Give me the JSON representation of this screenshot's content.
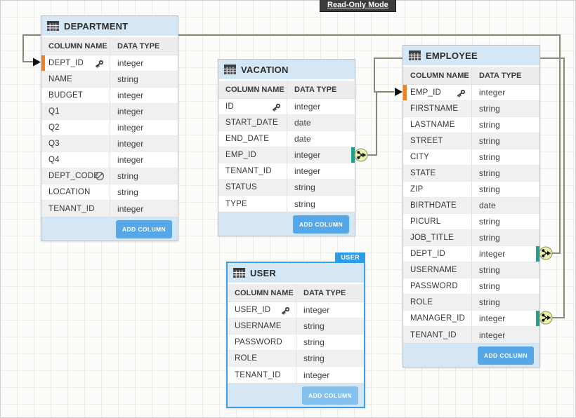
{
  "mode_badge": {
    "label": "Read-Only Mode"
  },
  "colors": {
    "accent_blue": "#55a7e8",
    "accent_blue_light": "#85c1ef",
    "header_blue": "#d5e7f4",
    "selected_border": "#3b9fe8",
    "badge_blue": "#2b9ce8",
    "line_olive": "#8b8876",
    "pk_orange": "#f08226",
    "fk_teal": "#21a18d",
    "connector_fill": "#e9efad",
    "readonly_bg": "#3c3c3c"
  },
  "tables": [
    {
      "title": "DEPARTMENT",
      "header": {
        "name": "COLUMN NAME",
        "type": "DATA TYPE"
      },
      "add_column_label": "ADD COLUMN",
      "rows": [
        {
          "name": "DEPT_ID",
          "type": "integer",
          "icon": "key",
          "marker": "left-orange"
        },
        {
          "name": "NAME",
          "type": "string"
        },
        {
          "name": "BUDGET",
          "type": "integer"
        },
        {
          "name": "Q1",
          "type": "integer"
        },
        {
          "name": "Q2",
          "type": "integer"
        },
        {
          "name": "Q3",
          "type": "integer"
        },
        {
          "name": "Q4",
          "type": "integer"
        },
        {
          "name": "DEPT_CODE",
          "type": "string",
          "icon": "slash-circle"
        },
        {
          "name": "LOCATION",
          "type": "string"
        },
        {
          "name": "TENANT_ID",
          "type": "integer"
        }
      ]
    },
    {
      "title": "VACATION",
      "header": {
        "name": "COLUMN NAME",
        "type": "DATA TYPE"
      },
      "add_column_label": "ADD COLUMN",
      "rows": [
        {
          "name": "ID",
          "type": "integer",
          "icon": "key"
        },
        {
          "name": "START_DATE",
          "type": "date"
        },
        {
          "name": "END_DATE",
          "type": "date"
        },
        {
          "name": "EMP_ID",
          "type": "integer",
          "marker": "right-teal"
        },
        {
          "name": "TENANT_ID",
          "type": "integer"
        },
        {
          "name": "STATUS",
          "type": "string"
        },
        {
          "name": "TYPE",
          "type": "string"
        }
      ]
    },
    {
      "title": "USER",
      "selected_badge": "USER",
      "header": {
        "name": "COLUMN NAME",
        "type": "DATA TYPE"
      },
      "add_column_label": "ADD COLUMN",
      "rows": [
        {
          "name": "USER_ID",
          "type": "integer",
          "icon": "key"
        },
        {
          "name": "USERNAME",
          "type": "string"
        },
        {
          "name": "PASSWORD",
          "type": "string"
        },
        {
          "name": "ROLE",
          "type": "string"
        },
        {
          "name": "TENANT_ID",
          "type": "integer"
        }
      ]
    },
    {
      "title": "EMPLOYEE",
      "header": {
        "name": "COLUMN NAME",
        "type": "DATA TYPE"
      },
      "add_column_label": "ADD COLUMN",
      "rows": [
        {
          "name": "EMP_ID",
          "type": "integer",
          "icon": "key",
          "marker": "left-orange"
        },
        {
          "name": "FIRSTNAME",
          "type": "string"
        },
        {
          "name": "LASTNAME",
          "type": "string"
        },
        {
          "name": "STREET",
          "type": "string"
        },
        {
          "name": "CITY",
          "type": "string"
        },
        {
          "name": "STATE",
          "type": "string"
        },
        {
          "name": "ZIP",
          "type": "string"
        },
        {
          "name": "BIRTHDATE",
          "type": "date"
        },
        {
          "name": "PICURL",
          "type": "string"
        },
        {
          "name": "JOB_TITLE",
          "type": "string"
        },
        {
          "name": "DEPT_ID",
          "type": "integer",
          "marker": "right-teal"
        },
        {
          "name": "USERNAME",
          "type": "string"
        },
        {
          "name": "PASSWORD",
          "type": "string"
        },
        {
          "name": "ROLE",
          "type": "string"
        },
        {
          "name": "MANAGER_ID",
          "type": "integer",
          "marker": "right-teal"
        },
        {
          "name": "TENANT_ID",
          "type": "integer"
        }
      ]
    }
  ],
  "relationships": [
    {
      "from_table": "EMPLOYEE",
      "from_column": "DEPT_ID",
      "to_table": "DEPARTMENT",
      "to_column": "DEPT_ID"
    },
    {
      "from_table": "VACATION",
      "from_column": "EMP_ID",
      "to_table": "EMPLOYEE",
      "to_column": "EMP_ID"
    },
    {
      "from_table": "EMPLOYEE",
      "from_column": "MANAGER_ID",
      "to_table": "EMPLOYEE",
      "to_column": "EMP_ID"
    }
  ]
}
